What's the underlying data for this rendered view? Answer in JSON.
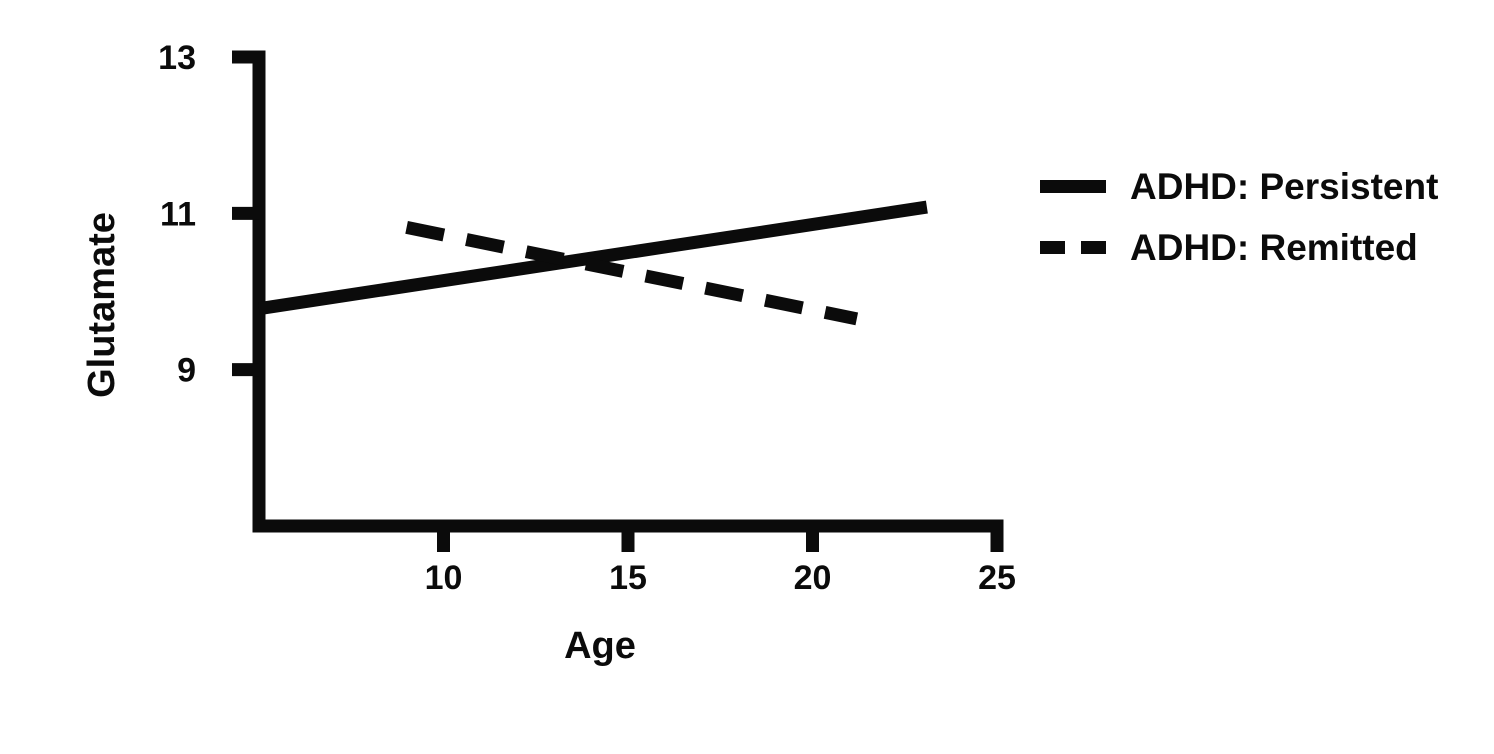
{
  "figure": {
    "background": "#ffffff",
    "ink": "#0b0b0b"
  },
  "chart_data": {
    "type": "line",
    "title": "",
    "xlabel": "Age",
    "ylabel": "Glutamate",
    "xlim": [
      5,
      25
    ],
    "ylim": [
      7,
      13
    ],
    "xticks": [
      10,
      15,
      20,
      25
    ],
    "yticks": [
      9,
      11,
      13
    ],
    "grid": false,
    "legend_position": "right-top",
    "series": [
      {
        "name": "ADHD: Persistent",
        "style": "solid",
        "points": [
          [
            5.0,
            9.78
          ],
          [
            23.1,
            11.08
          ]
        ]
      },
      {
        "name": "ADHD: Remitted",
        "style": "dashed",
        "points": [
          [
            9.0,
            10.82
          ],
          [
            21.2,
            9.65
          ]
        ]
      }
    ]
  }
}
